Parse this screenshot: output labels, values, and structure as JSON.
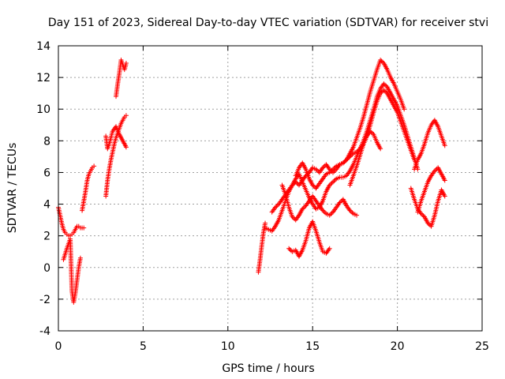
{
  "chart_data": {
    "type": "scatter",
    "title": "Day 151 of 2023, Sidereal Day-to-day VTEC variation (SDTVAR) for receiver stvi",
    "xlabel": "GPS time / hours",
    "ylabel": "SDTVAR / TECUs",
    "xlim": [
      0,
      25
    ],
    "ylim": [
      -4,
      14
    ],
    "xticks": [
      0,
      5,
      10,
      15,
      20,
      25
    ],
    "yticks": [
      -4,
      -2,
      0,
      2,
      4,
      6,
      8,
      10,
      12,
      14
    ],
    "grid": true,
    "marker": "plus",
    "color": "#ff0000",
    "series": [
      {
        "name": "s1",
        "x": [
          0,
          0.1,
          0.2,
          0.3,
          0.4,
          0.5,
          0.6,
          0.7,
          0.8,
          0.9,
          1.0,
          1.1,
          1.2,
          1.3,
          1.5
        ],
        "y": [
          3.8,
          3.3,
          2.8,
          2.4,
          2.2,
          2.1,
          2.0,
          2.0,
          2.1,
          2.2,
          2.4,
          2.6,
          2.6,
          2.5,
          2.5
        ]
      },
      {
        "name": "s2",
        "x": [
          0.3,
          0.5,
          0.7,
          0.8,
          0.9,
          1.0,
          1.1,
          1.2,
          1.3
        ],
        "y": [
          0.5,
          1.2,
          1.8,
          -1.5,
          -2.2,
          -1.6,
          -0.8,
          0.0,
          0.6
        ]
      },
      {
        "name": "s3",
        "x": [
          1.4,
          1.5,
          1.6,
          1.7,
          1.8,
          1.9,
          2.0,
          2.1
        ],
        "y": [
          3.6,
          4.2,
          4.8,
          5.5,
          5.9,
          6.1,
          6.3,
          6.4
        ]
      },
      {
        "name": "s4",
        "x": [
          2.8,
          2.9,
          3.0,
          3.1,
          3.2,
          3.3,
          3.4,
          3.5,
          3.6,
          3.7,
          3.8,
          3.9,
          4.0
        ],
        "y": [
          4.5,
          5.5,
          6.2,
          6.8,
          7.3,
          7.8,
          8.2,
          8.5,
          8.8,
          9.1,
          9.3,
          9.5,
          9.6
        ]
      },
      {
        "name": "s5",
        "x": [
          2.8,
          2.9,
          3.0,
          3.2,
          3.4,
          3.6,
          3.8,
          4.0
        ],
        "y": [
          8.3,
          7.5,
          7.8,
          8.6,
          8.9,
          8.4,
          8.0,
          7.6
        ]
      },
      {
        "name": "s6",
        "x": [
          3.4,
          3.5,
          3.6,
          3.7,
          3.8,
          3.9,
          4.0
        ],
        "y": [
          10.8,
          11.6,
          12.3,
          13.1,
          12.8,
          12.5,
          12.9
        ]
      },
      {
        "name": "s7",
        "x": [
          11.8,
          11.9,
          12.0,
          12.1,
          12.2
        ],
        "y": [
          -0.3,
          0.5,
          1.4,
          2.2,
          2.8
        ]
      },
      {
        "name": "s8",
        "x": [
          12.2,
          12.4,
          12.6,
          12.8,
          13.0,
          13.2,
          13.4,
          13.6,
          13.8,
          14.0,
          14.2,
          14.4,
          14.6,
          14.8,
          15.0,
          15.2,
          15.4,
          15.6,
          15.8,
          16.0,
          16.2,
          16.4,
          16.6,
          16.8,
          17.0,
          17.2,
          17.4,
          17.6,
          17.8,
          18.0,
          18.2,
          18.4,
          18.6,
          18.8,
          19.0,
          19.2,
          19.4,
          19.6,
          19.8,
          20.0,
          20.2,
          20.4,
          20.6,
          20.8,
          21.0
        ],
        "y": [
          2.5,
          2.4,
          2.3,
          2.6,
          3.0,
          3.6,
          4.2,
          4.8,
          5.2,
          5.4,
          5.2,
          5.5,
          5.8,
          6.0,
          6.3,
          6.2,
          6.0,
          6.3,
          6.5,
          6.2,
          6.0,
          6.2,
          6.5,
          6.6,
          6.8,
          7.0,
          7.2,
          7.3,
          7.5,
          7.8,
          8.3,
          9.0,
          9.8,
          10.5,
          11.0,
          11.2,
          11.0,
          10.6,
          10.2,
          9.8,
          9.2,
          8.6,
          8.0,
          7.4,
          6.8
        ]
      },
      {
        "name": "s9",
        "x": [
          12.6,
          12.8,
          13.0,
          13.2,
          13.4,
          13.6,
          13.8,
          14.0,
          14.2,
          14.4,
          14.6,
          14.8,
          15.0,
          15.2,
          15.4,
          15.6,
          15.8,
          16.0,
          16.2,
          16.4,
          16.6,
          16.8,
          17.0,
          17.2,
          17.4,
          17.6,
          17.8,
          18.0,
          18.2,
          18.4,
          18.6,
          18.8,
          19.0,
          19.2,
          19.4,
          19.6,
          19.8,
          20.0,
          20.2,
          20.4,
          20.6,
          20.8,
          21.0,
          21.2
        ],
        "y": [
          3.5,
          3.8,
          4.0,
          4.3,
          4.6,
          4.9,
          5.2,
          5.6,
          5.9,
          5.4,
          4.9,
          4.4,
          4.0,
          3.7,
          3.8,
          4.2,
          4.8,
          5.2,
          5.4,
          5.6,
          5.7,
          5.7,
          5.8,
          6.1,
          6.5,
          7.0,
          7.5,
          8.0,
          8.6,
          9.3,
          10.0,
          10.8,
          11.3,
          11.6,
          11.4,
          11.0,
          10.6,
          10.2,
          9.6,
          9.0,
          8.3,
          7.6,
          6.9,
          6.2
        ]
      },
      {
        "name": "s10",
        "x": [
          14.0,
          14.2,
          14.4,
          14.6,
          14.8,
          15.0,
          15.2,
          15.4,
          15.6,
          15.8,
          16.0,
          16.2,
          16.4,
          16.6,
          16.8,
          17.0,
          17.2,
          17.4,
          17.6,
          17.8,
          18.0,
          18.2,
          18.4,
          18.6,
          18.8,
          19.0,
          19.2,
          19.4,
          19.6,
          19.8,
          20.0,
          20.2,
          20.4
        ],
        "y": [
          5.8,
          6.3,
          6.6,
          6.2,
          5.6,
          5.2,
          5.0,
          5.3,
          5.6,
          5.9,
          6.0,
          6.2,
          6.4,
          6.5,
          6.6,
          6.8,
          7.2,
          7.6,
          8.2,
          8.8,
          9.5,
          10.3,
          11.1,
          11.8,
          12.5,
          13.1,
          12.9,
          12.5,
          12.0,
          11.6,
          11.1,
          10.6,
          10.0
        ]
      },
      {
        "name": "s11",
        "x": [
          13.2,
          13.4,
          13.6,
          13.8,
          14.0,
          14.2,
          14.4,
          14.6,
          14.8,
          15.0,
          15.2,
          15.4,
          15.6,
          15.8,
          16.0,
          16.2,
          16.4,
          16.6,
          16.8,
          17.0,
          17.2,
          17.4,
          17.6
        ],
        "y": [
          5.2,
          4.6,
          3.8,
          3.2,
          3.0,
          3.3,
          3.7,
          3.9,
          4.2,
          4.5,
          4.2,
          3.9,
          3.6,
          3.4,
          3.3,
          3.5,
          3.8,
          4.1,
          4.3,
          3.9,
          3.6,
          3.4,
          3.3
        ]
      },
      {
        "name": "s12",
        "x": [
          13.6,
          13.8,
          14.0,
          14.2,
          14.4,
          14.6,
          14.8,
          15.0,
          15.2,
          15.4,
          15.6,
          15.8,
          16.0
        ],
        "y": [
          1.2,
          1.0,
          1.1,
          0.7,
          1.1,
          1.7,
          2.5,
          2.9,
          2.3,
          1.6,
          1.0,
          0.9,
          1.2
        ]
      },
      {
        "name": "s13",
        "x": [
          17.2,
          17.4,
          17.6,
          17.8,
          18.0,
          18.2,
          18.4,
          18.6,
          18.8,
          19.0
        ],
        "y": [
          5.2,
          5.8,
          6.4,
          7.1,
          7.8,
          8.3,
          8.6,
          8.4,
          7.9,
          7.5
        ]
      },
      {
        "name": "s14",
        "x": [
          21.0,
          21.2,
          21.4,
          21.6,
          21.8,
          22.0,
          22.2,
          22.4,
          22.6,
          22.8
        ],
        "y": [
          6.2,
          6.8,
          7.2,
          7.8,
          8.5,
          9.0,
          9.3,
          8.9,
          8.3,
          7.7
        ]
      },
      {
        "name": "s15",
        "x": [
          20.8,
          21.0,
          21.2,
          21.4,
          21.6,
          21.8,
          22.0,
          22.2,
          22.4,
          22.6,
          22.8
        ],
        "y": [
          5.0,
          4.3,
          3.7,
          3.4,
          3.2,
          2.8,
          2.6,
          3.3,
          4.2,
          4.9,
          4.5
        ]
      },
      {
        "name": "s16",
        "x": [
          21.2,
          21.4,
          21.6,
          21.8,
          22.0,
          22.2,
          22.4,
          22.6,
          22.8
        ],
        "y": [
          3.5,
          4.2,
          4.8,
          5.4,
          5.8,
          6.1,
          6.3,
          5.9,
          5.5
        ]
      }
    ]
  }
}
